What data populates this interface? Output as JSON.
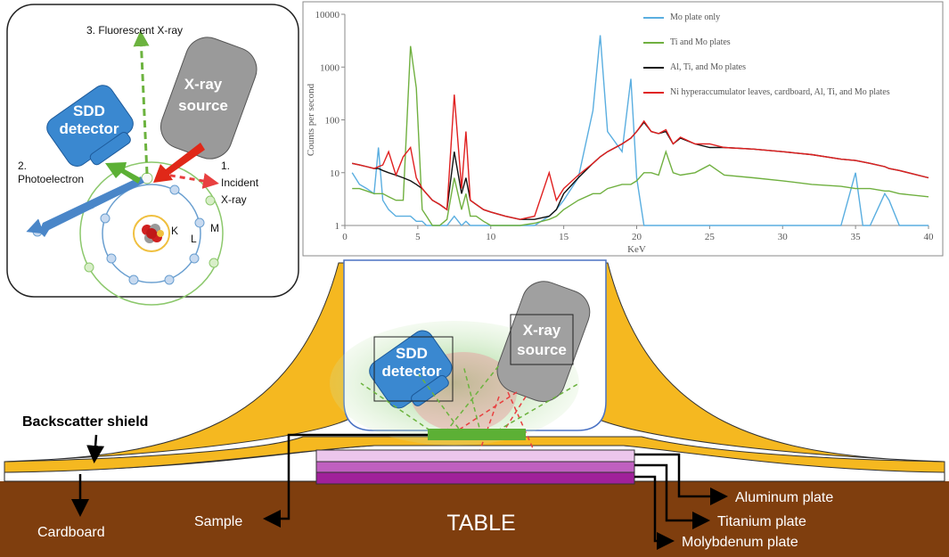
{
  "inset": {
    "fluorescent": "3. Fluorescent X-ray",
    "source": [
      "X-ray",
      "source"
    ],
    "detector": [
      "SDD",
      "detector"
    ],
    "photoelectron": [
      "2.",
      "Photoelectron"
    ],
    "incident": [
      "1.",
      "Incident",
      "X-ray"
    ],
    "shells": [
      "K",
      "L",
      "M"
    ]
  },
  "chart_data": {
    "type": "line",
    "y_label": "Counts per second",
    "x_label": "KeV",
    "log_y": true,
    "legend_loc": "upper right",
    "x": [
      0.5,
      1,
      1.5,
      2,
      2.3,
      2.6,
      3,
      3.5,
      4,
      4.5,
      4.9,
      5.3,
      5.6,
      6,
      6.5,
      7,
      7.5,
      8,
      8.3,
      8.6,
      9,
      9.5,
      10,
      11,
      12,
      13,
      14,
      14.5,
      15,
      16,
      17,
      17.5,
      18,
      19,
      19.6,
      20,
      20.5,
      21,
      21.5,
      22,
      22.5,
      23,
      24,
      25,
      26,
      28,
      30,
      32,
      34,
      35,
      35.5,
      36,
      37,
      37.3,
      38,
      40
    ],
    "xlim": [
      0,
      40
    ],
    "xticks": [
      0,
      5,
      10,
      15,
      20,
      25,
      30,
      35,
      40
    ],
    "ylim": [
      1,
      10000
    ],
    "yticks": [
      1,
      10,
      100,
      1000,
      10000
    ],
    "series": [
      {
        "name": "Mo plate only",
        "color": "#5aaee0",
        "values": [
          10,
          6,
          5,
          4,
          30,
          3,
          2,
          1.5,
          1.5,
          1.5,
          1.2,
          1.2,
          1,
          1,
          1,
          1,
          1.5,
          1,
          1.2,
          1,
          1,
          1,
          1,
          1,
          1,
          1,
          1.5,
          2,
          3,
          8,
          150,
          4000,
          60,
          25,
          600,
          8,
          1,
          1,
          1,
          1,
          1,
          1,
          1,
          1,
          1,
          1,
          1,
          1,
          1,
          10,
          1,
          1,
          4,
          3,
          1,
          1
        ]
      },
      {
        "name": "Ti and Mo plates",
        "color": "#70b040",
        "values": [
          5,
          5,
          4.5,
          4,
          4,
          4,
          3.5,
          3,
          3,
          2500,
          400,
          2,
          1.5,
          1,
          1,
          1.3,
          8,
          2,
          4,
          1.5,
          1.5,
          1.2,
          1,
          1,
          1,
          1.1,
          1.3,
          1.5,
          2,
          3,
          4,
          4,
          5,
          6,
          6,
          7,
          10,
          10,
          9,
          25,
          10,
          9,
          10,
          14,
          9,
          8,
          7,
          6,
          5.5,
          5,
          5,
          5,
          4.5,
          4.5,
          4,
          3.5
        ]
      },
      {
        "name": "Al, Ti, and Mo plates",
        "color": "#111111",
        "values": [
          15,
          14,
          13,
          12,
          12,
          11,
          10,
          9,
          8,
          7,
          6,
          5,
          4,
          3,
          2.5,
          2,
          25,
          4,
          8,
          3,
          2.5,
          2,
          1.8,
          1.5,
          1.3,
          1.3,
          1.5,
          2,
          4,
          8,
          15,
          20,
          25,
          35,
          45,
          60,
          90,
          60,
          55,
          60,
          35,
          45,
          35,
          30,
          30,
          28,
          25,
          22,
          18,
          17,
          16,
          15,
          13,
          12,
          11,
          8
        ]
      },
      {
        "name": "Ni hyperaccumulator leaves, cardboard, Al, Ti, and Mo plates",
        "color": "#e02020",
        "values": [
          15,
          14,
          13,
          12,
          13,
          14,
          25,
          9,
          20,
          30,
          8,
          5,
          4,
          3,
          2.5,
          2,
          300,
          5,
          60,
          3,
          2.5,
          2,
          1.8,
          1.5,
          1.3,
          1.5,
          10,
          3,
          5,
          9,
          15,
          20,
          25,
          35,
          45,
          60,
          95,
          60,
          55,
          65,
          35,
          47,
          35,
          35,
          30,
          28,
          25,
          22,
          18,
          17,
          16,
          15,
          13,
          12,
          11,
          8
        ]
      }
    ]
  },
  "setup": {
    "detector": [
      "SDD",
      "detector"
    ],
    "source": [
      "X-ray",
      "source"
    ],
    "backscatter": "Backscatter shield",
    "cardboard": "Cardboard",
    "sample": "Sample",
    "table": "TABLE",
    "plates": [
      "Aluminum plate",
      "Titanium plate",
      "Molybdenum plate"
    ]
  }
}
